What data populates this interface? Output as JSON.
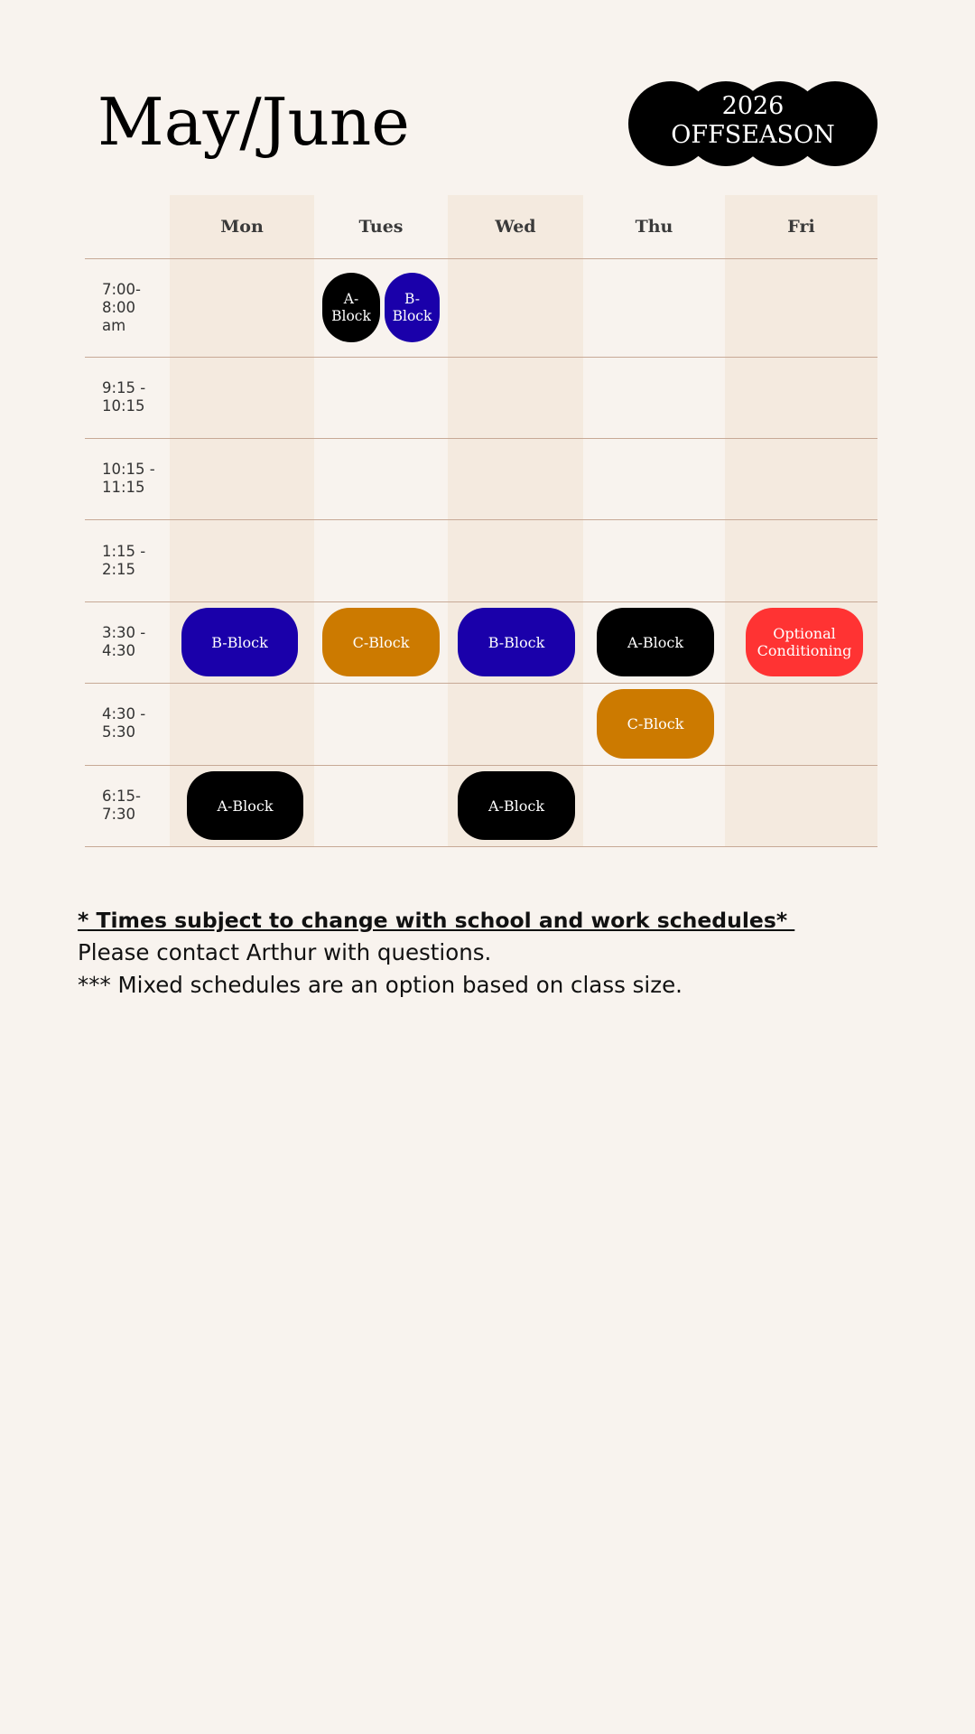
{
  "title": "May/June",
  "badge": {
    "year": "2026",
    "label": "OFFSEASON"
  },
  "days": [
    "Mon",
    "Tues",
    "Wed",
    "Thu",
    "Fri"
  ],
  "times": [
    "7:00-\n8:00\nam",
    "9:15 -\n10:15",
    "10:15 -\n11:15",
    "1:15 -\n2:15",
    "3:30 -\n4:30",
    "4:30 -\n5:30",
    "6:15-\n7:30"
  ],
  "blocks": [
    {
      "day": "Tues",
      "time": "7:00-8:00 am",
      "label": "A-\nBlock",
      "color": "#000000"
    },
    {
      "day": "Tues",
      "time": "7:00-8:00 am",
      "label": "B-\nBlock",
      "color": "#1a00aa"
    },
    {
      "day": "Mon",
      "time": "3:30 - 4:30",
      "label": "B-Block",
      "color": "#1a00aa"
    },
    {
      "day": "Tues",
      "time": "3:30 - 4:30",
      "label": "C-Block",
      "color": "#cc7a00"
    },
    {
      "day": "Wed",
      "time": "3:30 - 4:30",
      "label": "B-Block",
      "color": "#1a00aa"
    },
    {
      "day": "Thu",
      "time": "3:30 - 4:30",
      "label": "A-Block",
      "color": "#000000"
    },
    {
      "day": "Fri",
      "time": "3:30 - 4:30",
      "label": "Optional\nConditioning",
      "color": "#ff3333"
    },
    {
      "day": "Thu",
      "time": "4:30 - 5:30",
      "label": "C-Block",
      "color": "#cc7a00"
    },
    {
      "day": "Mon",
      "time": "6:15-7:30",
      "label": "A-Block",
      "color": "#000000"
    },
    {
      "day": "Wed",
      "time": "6:15-7:30",
      "label": "A-Block",
      "color": "#000000"
    }
  ],
  "notes": {
    "line1": "* Times subject to change with school and work schedules* ",
    "line2": "Please contact Arthur with questions.",
    "line3": "*** Mixed schedules are an option based on class size."
  },
  "colors": {
    "background": "#f8f3ee",
    "column_shade": "#f4eadf",
    "rule": "#c7a996"
  }
}
